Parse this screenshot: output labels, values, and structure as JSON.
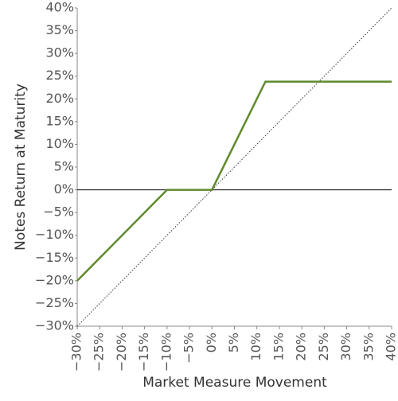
{
  "chart_data": {
    "type": "line",
    "x_label": "Market Measure Movement",
    "y_label": "Notes Return at Maturity",
    "xlim": [
      -30,
      40
    ],
    "ylim": [
      -30,
      40
    ],
    "xticks": [
      {
        "value": -30,
        "label": "−30%"
      },
      {
        "value": -25,
        "label": "−25%"
      },
      {
        "value": -20,
        "label": "−20%"
      },
      {
        "value": -15,
        "label": "−15%"
      },
      {
        "value": -10,
        "label": "−10%"
      },
      {
        "value": -5,
        "label": "−5%"
      },
      {
        "value": 0,
        "label": "0%"
      },
      {
        "value": 5,
        "label": "5%"
      },
      {
        "value": 10,
        "label": "10%"
      },
      {
        "value": 15,
        "label": "15%"
      },
      {
        "value": 20,
        "label": "20%"
      },
      {
        "value": 25,
        "label": "25%"
      },
      {
        "value": 30,
        "label": "30%"
      },
      {
        "value": 35,
        "label": "35%"
      },
      {
        "value": 40,
        "label": "40%"
      }
    ],
    "yticks": [
      {
        "value": -30,
        "label": "−30%"
      },
      {
        "value": -25,
        "label": "−25%"
      },
      {
        "value": -20,
        "label": "−20%"
      },
      {
        "value": -15,
        "label": "−15%"
      },
      {
        "value": -10,
        "label": "−10%"
      },
      {
        "value": -5,
        "label": "−5%"
      },
      {
        "value": 0,
        "label": "0%"
      },
      {
        "value": 5,
        "label": "5%"
      },
      {
        "value": 10,
        "label": "10%"
      },
      {
        "value": 15,
        "label": "15%"
      },
      {
        "value": 20,
        "label": "20%"
      },
      {
        "value": 25,
        "label": "25%"
      },
      {
        "value": 30,
        "label": "30%"
      },
      {
        "value": 35,
        "label": "35%"
      },
      {
        "value": 40,
        "label": "40%"
      }
    ],
    "series": [
      {
        "color": "#5f8a2e",
        "style": "solid",
        "x": [
          -30,
          -10,
          0,
          11.9,
          40
        ],
        "values": [
          -20,
          0,
          0,
          23.8,
          23.8
        ]
      },
      {
        "color": "#333333",
        "style": "dotted",
        "x": [
          -30,
          40
        ],
        "values": [
          -30,
          40
        ]
      }
    ]
  }
}
